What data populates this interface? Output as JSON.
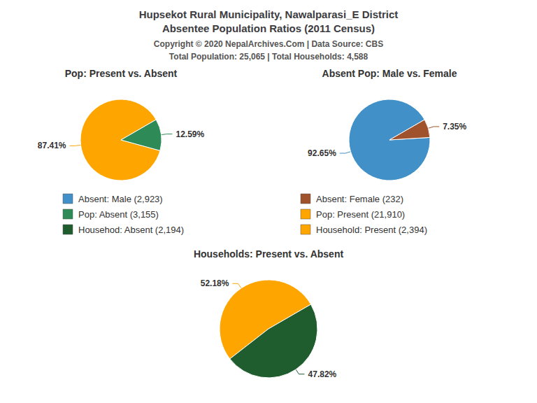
{
  "title": "Hupsekot Rural Municipality, Nawalparasi_E District",
  "subtitle": "Absentee Population Ratios (2011 Census)",
  "annotations": [
    "Copyright © 2020 NepalArchives.Com | Data Source: CBS",
    "Total Population: 25,065 | Total Households: 4,588"
  ],
  "legend_entries": [
    {
      "label": "Absent: Male (2,923)",
      "color": "#4190C7"
    },
    {
      "label": "Absent: Female (232)",
      "color": "#A0522D"
    },
    {
      "label": "Pop: Absent (3,155)",
      "color": "#2E8B57"
    },
    {
      "label": "Pop: Present (21,910)",
      "color": "#FFA500"
    },
    {
      "label": "Househod: Absent (2,194)",
      "color": "#1F5C2E"
    },
    {
      "label": "Household: Present (2,394)",
      "color": "#FFA500"
    }
  ],
  "chart_data": [
    {
      "type": "pie",
      "title": "Pop: Present vs. Absent",
      "values": [
        87.41,
        12.59
      ],
      "value_labels": [
        "87.41%",
        "12.59%"
      ],
      "colors": [
        "#FFA500",
        "#2E8B57"
      ],
      "data_labels": true
    },
    {
      "type": "pie",
      "title": "Absent Pop: Male vs. Female",
      "values": [
        92.65,
        7.35
      ],
      "value_labels": [
        "92.65%",
        "7.35%"
      ],
      "colors": [
        "#4190C7",
        "#A0522D"
      ],
      "data_labels": true
    },
    {
      "type": "pie",
      "title": "Households: Present vs. Absent",
      "values": [
        52.18,
        47.82
      ],
      "value_labels": [
        "52.18%",
        "47.82%"
      ],
      "colors": [
        "#FFA500",
        "#1F5C2E"
      ],
      "data_labels": true
    }
  ]
}
